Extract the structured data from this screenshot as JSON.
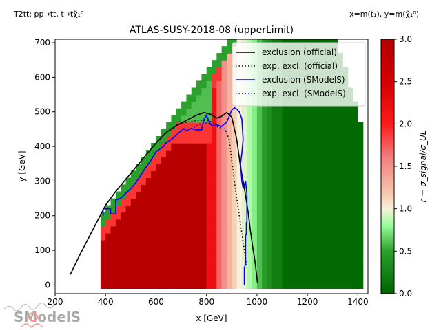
{
  "header": {
    "process": "T2tt: pp→t̃t̃, t̃→tχ̃₁⁰",
    "variables": "x=m(t̃₁), y=m(χ̃₁⁰)"
  },
  "logo": {
    "text": "SModelS"
  },
  "chart_data": {
    "type": "heatmap",
    "title": "ATLAS-SUSY-2018-08 (upperLimit)",
    "xlabel": "x [GeV]",
    "ylabel": "y [GeV]",
    "xlim": [
      200,
      1440
    ],
    "ylim": [
      -25,
      710
    ],
    "xticks": [
      200,
      400,
      600,
      800,
      1000,
      1200,
      1400
    ],
    "yticks": [
      0,
      100,
      200,
      300,
      400,
      500,
      600,
      700
    ],
    "colorbar": {
      "label": "r = σ_signal/σ_UL",
      "range": [
        0.0,
        3.0
      ],
      "ticks": [
        0.0,
        0.5,
        1.0,
        1.5,
        2.0,
        2.5,
        3.0
      ],
      "stops": [
        {
          "v": 0.0,
          "color": "#006400"
        },
        {
          "v": 0.5,
          "color": "#2ca02c"
        },
        {
          "v": 0.8,
          "color": "#98fb98"
        },
        {
          "v": 1.0,
          "color": "#f7f2dc"
        },
        {
          "v": 1.2,
          "color": "#f5c5a8"
        },
        {
          "v": 1.6,
          "color": "#f08080"
        },
        {
          "v": 2.0,
          "color": "#ff1a1a"
        },
        {
          "v": 2.5,
          "color": "#d40000"
        },
        {
          "v": 3.0,
          "color": "#b20000"
        }
      ]
    },
    "grid": false,
    "legend_position": "top-right",
    "series": [
      {
        "name": "exclusion (official)",
        "color": "#000000",
        "style": "solid",
        "x": [
          260,
          300,
          350,
          400,
          440,
          480,
          520,
          560,
          600,
          640,
          680,
          720,
          760,
          790,
          820,
          840,
          860,
          880,
          900,
          920,
          935,
          950,
          965,
          975,
          985,
          990,
          995,
          1000,
          1002
        ],
        "y": [
          30,
          90,
          160,
          230,
          270,
          305,
          340,
          375,
          410,
          440,
          460,
          475,
          490,
          498,
          492,
          482,
          487,
          498,
          485,
          420,
          340,
          280,
          210,
          150,
          100,
          80,
          50,
          20,
          5
        ]
      },
      {
        "name": "exp. excl. (official)",
        "color": "#000000",
        "style": "dotted",
        "x": [
          520,
          560,
          600,
          640,
          680,
          720,
          760,
          800,
          830,
          850,
          860,
          870,
          880,
          890,
          900,
          910,
          920,
          930,
          940,
          950,
          960
        ],
        "y": [
          340,
          375,
          410,
          440,
          462,
          470,
          475,
          475,
          470,
          460,
          450,
          450,
          440,
          420,
          360,
          300,
          250,
          200,
          150,
          100,
          50
        ]
      },
      {
        "name": "exclusion (SModelS)",
        "color": "#0000ff",
        "style": "solid",
        "x": [
          390,
          390,
          420,
          420,
          440,
          440,
          460,
          480,
          500,
          520,
          540,
          560,
          580,
          600,
          610,
          630,
          640,
          660,
          680,
          690,
          700,
          710,
          720,
          740,
          760,
          780,
          790,
          800,
          810,
          820,
          840,
          860,
          880,
          900,
          910,
          920,
          930,
          940,
          945,
          940,
          935,
          940,
          945,
          950,
          955,
          960,
          960,
          958,
          958,
          955,
          955,
          950,
          950
        ],
        "y": [
          200,
          220,
          220,
          205,
          205,
          245,
          250,
          265,
          278,
          295,
          318,
          340,
          360,
          385,
          390,
          400,
          410,
          420,
          432,
          440,
          445,
          452,
          445,
          452,
          448,
          448,
          478,
          490,
          472,
          460,
          462,
          458,
          470,
          505,
          512,
          508,
          500,
          480,
          420,
          380,
          350,
          300,
          280,
          290,
          300,
          260,
          180,
          180,
          150,
          140,
          60,
          50,
          0
        ]
      },
      {
        "name": "exp. excl. (SModelS)",
        "color": "#0000ff",
        "style": "dotted",
        "x": [
          740,
          760,
          780,
          800,
          820,
          830,
          840,
          850,
          860,
          870,
          880
        ],
        "y": [
          450,
          460,
          465,
          468,
          465,
          460,
          458,
          455,
          460,
          455,
          440
        ]
      }
    ]
  }
}
